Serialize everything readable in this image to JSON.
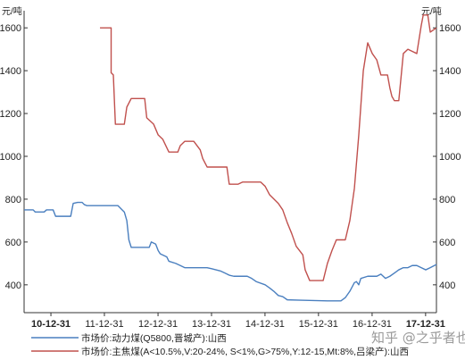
{
  "chart_data": {
    "type": "line",
    "y_unit_left": "元/吨",
    "y_unit_right": "元/吨",
    "ylim": [
      270,
      1680
    ],
    "yticks": [
      400,
      600,
      800,
      1000,
      1200,
      1400,
      1600
    ],
    "xlim": [
      "2010-07-01",
      "2018-03-15"
    ],
    "xticks": [
      "10-12-31",
      "11-12-31",
      "12-12-31",
      "13-12-31",
      "14-12-31",
      "15-12-31",
      "16-12-31",
      "17-12-31"
    ],
    "xticks_bold": [
      "10-12-31",
      "17-12-31"
    ],
    "series": [
      {
        "name": "市场价:动力煤(Q5800,晋城产):山西",
        "color": "#4a7fbf",
        "points": [
          [
            "2010-07-01",
            750
          ],
          [
            "2010-09-01",
            750
          ],
          [
            "2010-09-15",
            740
          ],
          [
            "2010-11-15",
            740
          ],
          [
            "2010-12-01",
            750
          ],
          [
            "2011-01-15",
            750
          ],
          [
            "2011-02-01",
            720
          ],
          [
            "2011-05-15",
            720
          ],
          [
            "2011-06-01",
            780
          ],
          [
            "2011-07-01",
            785
          ],
          [
            "2011-08-01",
            785
          ],
          [
            "2011-08-15",
            775
          ],
          [
            "2011-09-01",
            770
          ],
          [
            "2012-04-01",
            770
          ],
          [
            "2012-05-15",
            740
          ],
          [
            "2012-06-01",
            700
          ],
          [
            "2012-06-15",
            610
          ],
          [
            "2012-07-01",
            575
          ],
          [
            "2012-08-01",
            575
          ],
          [
            "2012-11-01",
            575
          ],
          [
            "2012-11-15",
            600
          ],
          [
            "2012-12-15",
            590
          ],
          [
            "2013-01-01",
            560
          ],
          [
            "2013-01-15",
            545
          ],
          [
            "2013-03-01",
            530
          ],
          [
            "2013-03-15",
            510
          ],
          [
            "2013-05-01",
            500
          ],
          [
            "2013-06-01",
            490
          ],
          [
            "2013-07-01",
            480
          ],
          [
            "2013-12-01",
            480
          ],
          [
            "2014-01-01",
            475
          ],
          [
            "2014-03-01",
            465
          ],
          [
            "2014-04-01",
            455
          ],
          [
            "2014-05-01",
            445
          ],
          [
            "2014-06-01",
            440
          ],
          [
            "2014-09-01",
            440
          ],
          [
            "2014-10-01",
            430
          ],
          [
            "2014-11-01",
            415
          ],
          [
            "2015-01-01",
            400
          ],
          [
            "2015-02-01",
            385
          ],
          [
            "2015-03-01",
            370
          ],
          [
            "2015-04-01",
            350
          ],
          [
            "2015-05-01",
            345
          ],
          [
            "2015-06-01",
            330
          ],
          [
            "2015-09-01",
            328
          ],
          [
            "2016-03-01",
            325
          ],
          [
            "2016-06-01",
            325
          ],
          [
            "2016-07-01",
            340
          ],
          [
            "2016-08-01",
            370
          ],
          [
            "2016-09-01",
            410
          ],
          [
            "2016-09-15",
            415
          ],
          [
            "2016-10-01",
            400
          ],
          [
            "2016-10-15",
            430
          ],
          [
            "2016-12-01",
            440
          ],
          [
            "2017-02-01",
            440
          ],
          [
            "2017-03-01",
            450
          ],
          [
            "2017-04-01",
            430
          ],
          [
            "2017-05-01",
            440
          ],
          [
            "2017-06-01",
            455
          ],
          [
            "2017-07-01",
            470
          ],
          [
            "2017-08-01",
            480
          ],
          [
            "2017-09-01",
            480
          ],
          [
            "2017-10-01",
            490
          ],
          [
            "2017-11-01",
            490
          ],
          [
            "2017-12-01",
            480
          ],
          [
            "2018-01-01",
            470
          ],
          [
            "2018-02-01",
            480
          ],
          [
            "2018-03-01",
            490
          ],
          [
            "2018-03-15",
            495
          ]
        ]
      },
      {
        "name": "市场价:主焦煤(A<10.5%,V:20-24%, S<1%,G>75%,Y:12-15,Mt:8%,吕梁产):山西",
        "color": "#c0504d",
        "points": [
          [
            "2011-12-01",
            1600
          ],
          [
            "2012-02-15",
            1600
          ],
          [
            "2012-02-15",
            1390
          ],
          [
            "2012-03-01",
            1380
          ],
          [
            "2012-03-15",
            1150
          ],
          [
            "2012-05-15",
            1150
          ],
          [
            "2012-06-01",
            1230
          ],
          [
            "2012-07-01",
            1270
          ],
          [
            "2012-10-01",
            1270
          ],
          [
            "2012-10-15",
            1180
          ],
          [
            "2012-12-01",
            1150
          ],
          [
            "2013-01-01",
            1100
          ],
          [
            "2013-02-01",
            1080
          ],
          [
            "2013-03-15",
            1020
          ],
          [
            "2013-05-15",
            1020
          ],
          [
            "2013-06-01",
            1050
          ],
          [
            "2013-07-01",
            1070
          ],
          [
            "2013-09-01",
            1070
          ],
          [
            "2013-10-15",
            1030
          ],
          [
            "2013-11-01",
            990
          ],
          [
            "2013-12-01",
            950
          ],
          [
            "2014-04-15",
            950
          ],
          [
            "2014-05-01",
            870
          ],
          [
            "2014-07-01",
            870
          ],
          [
            "2014-08-01",
            880
          ],
          [
            "2014-12-01",
            880
          ],
          [
            "2015-01-01",
            860
          ],
          [
            "2015-02-01",
            820
          ],
          [
            "2015-04-01",
            780
          ],
          [
            "2015-05-01",
            750
          ],
          [
            "2015-06-01",
            690
          ],
          [
            "2015-07-01",
            640
          ],
          [
            "2015-08-01",
            580
          ],
          [
            "2015-09-15",
            540
          ],
          [
            "2015-10-01",
            470
          ],
          [
            "2015-11-01",
            420
          ],
          [
            "2016-02-01",
            420
          ],
          [
            "2016-03-01",
            500
          ],
          [
            "2016-04-01",
            560
          ],
          [
            "2016-05-01",
            610
          ],
          [
            "2016-07-01",
            610
          ],
          [
            "2016-08-01",
            700
          ],
          [
            "2016-09-01",
            850
          ],
          [
            "2016-10-01",
            1100
          ],
          [
            "2016-11-01",
            1400
          ],
          [
            "2016-12-01",
            1530
          ],
          [
            "2017-01-01",
            1480
          ],
          [
            "2017-02-01",
            1450
          ],
          [
            "2017-03-01",
            1380
          ],
          [
            "2017-04-15",
            1380
          ],
          [
            "2017-05-01",
            1320
          ],
          [
            "2017-05-15",
            1280
          ],
          [
            "2017-06-01",
            1260
          ],
          [
            "2017-07-01",
            1260
          ],
          [
            "2017-08-01",
            1480
          ],
          [
            "2017-09-01",
            1500
          ],
          [
            "2017-10-01",
            1490
          ],
          [
            "2017-11-01",
            1480
          ],
          [
            "2017-12-01",
            1610
          ],
          [
            "2017-12-15",
            1660
          ],
          [
            "2018-01-15",
            1660
          ],
          [
            "2018-02-01",
            1580
          ],
          [
            "2018-03-15",
            1600
          ]
        ]
      }
    ],
    "legend_position": "bottom-left",
    "grid": false
  },
  "watermark": "知乎 @之乎者也"
}
